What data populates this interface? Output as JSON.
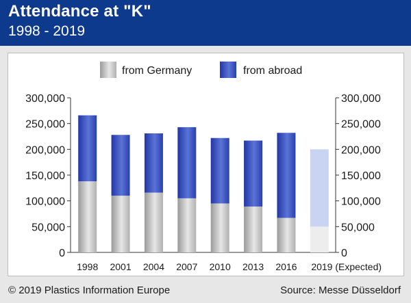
{
  "header": {
    "title": "Attendance at \"K\"",
    "subtitle": "1998 - 2019"
  },
  "footer": {
    "copyright": "© 2019 Plastics Information Europe",
    "source": "Source: Messe Düsseldorf"
  },
  "legend": {
    "germany_label": "from Germany",
    "abroad_label": "from abroad"
  },
  "colors": {
    "header_bg": "#0d3a8c",
    "germany_dark": "#9a9a9a",
    "germany_light": "#e6e6e6",
    "abroad_dark": "#2336a6",
    "abroad_light": "#5a74d6",
    "expected_germany": "#ededed",
    "expected_abroad": "#c9d4f2"
  },
  "chart_data": {
    "type": "bar",
    "stacked": true,
    "categories": [
      "1998",
      "2001",
      "2004",
      "2007",
      "2010",
      "2013",
      "2016",
      "2019 (Expected)"
    ],
    "series": [
      {
        "name": "from Germany",
        "values": [
          138000,
          110000,
          116000,
          105000,
          95000,
          89000,
          67000,
          50000
        ]
      },
      {
        "name": "from abroad",
        "values": [
          128000,
          118000,
          115000,
          138000,
          127000,
          128000,
          165000,
          150000
        ]
      }
    ],
    "ylim": [
      0,
      300000
    ],
    "yticks": [
      "0",
      "50,000",
      "100,000",
      "150,000",
      "200,000",
      "250,000",
      "300,000"
    ],
    "yticks_values": [
      0,
      50000,
      100000,
      150000,
      200000,
      250000,
      300000
    ],
    "dual_axis": true,
    "grid": false,
    "legend_position": "top-center",
    "expected_index": 7
  }
}
